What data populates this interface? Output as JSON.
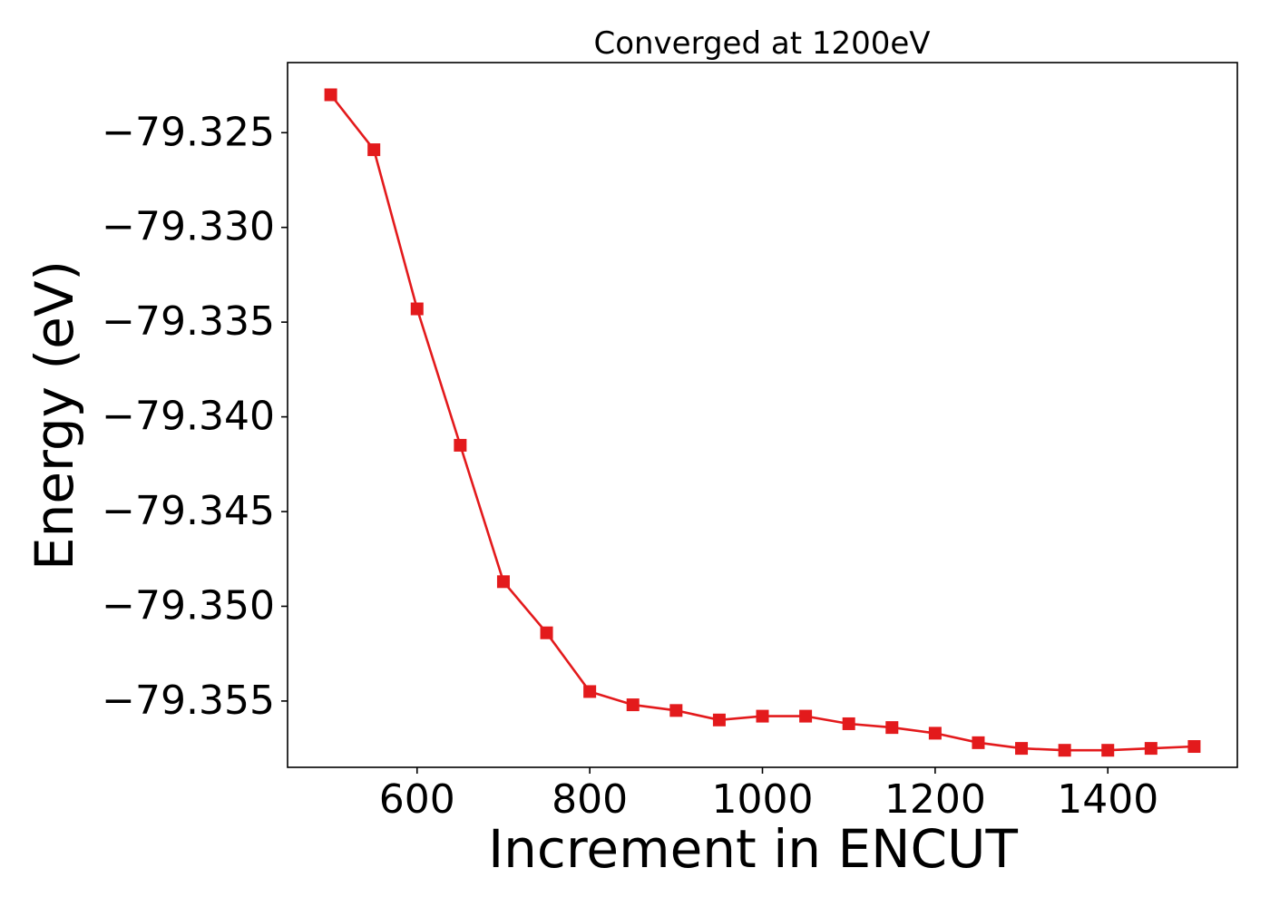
{
  "chart_data": {
    "type": "line",
    "title": "Converged at 1200eV",
    "xlabel": "Increment in ENCUT",
    "ylabel": "Energy (eV)",
    "xlim": [
      450,
      1550
    ],
    "ylim": [
      -79.3585,
      -79.3213
    ],
    "xticks": [
      600,
      800,
      1000,
      1200,
      1400
    ],
    "xtick_labels": [
      "600",
      "800",
      "1000",
      "1200",
      "1400"
    ],
    "yticks": [
      -79.325,
      -79.33,
      -79.335,
      -79.34,
      -79.345,
      -79.35,
      -79.355
    ],
    "ytick_labels": [
      "−79.325",
      "−79.330",
      "−79.335",
      "−79.340",
      "−79.345",
      "−79.350",
      "−79.355"
    ],
    "grid": false,
    "series": [
      {
        "color": "#e31a1c",
        "marker": "square",
        "x": [
          500,
          550,
          600,
          650,
          700,
          750,
          800,
          850,
          900,
          950,
          1000,
          1050,
          1100,
          1150,
          1200,
          1250,
          1300,
          1350,
          1400,
          1450,
          1500
        ],
        "y": [
          -79.323,
          -79.3259,
          -79.3343,
          -79.3415,
          -79.3487,
          -79.3514,
          -79.3545,
          -79.3552,
          -79.3555,
          -79.356,
          -79.3558,
          -79.3558,
          -79.3562,
          -79.3564,
          -79.3567,
          -79.3572,
          -79.3575,
          -79.3576,
          -79.3576,
          -79.3575,
          -79.3574
        ]
      }
    ]
  }
}
